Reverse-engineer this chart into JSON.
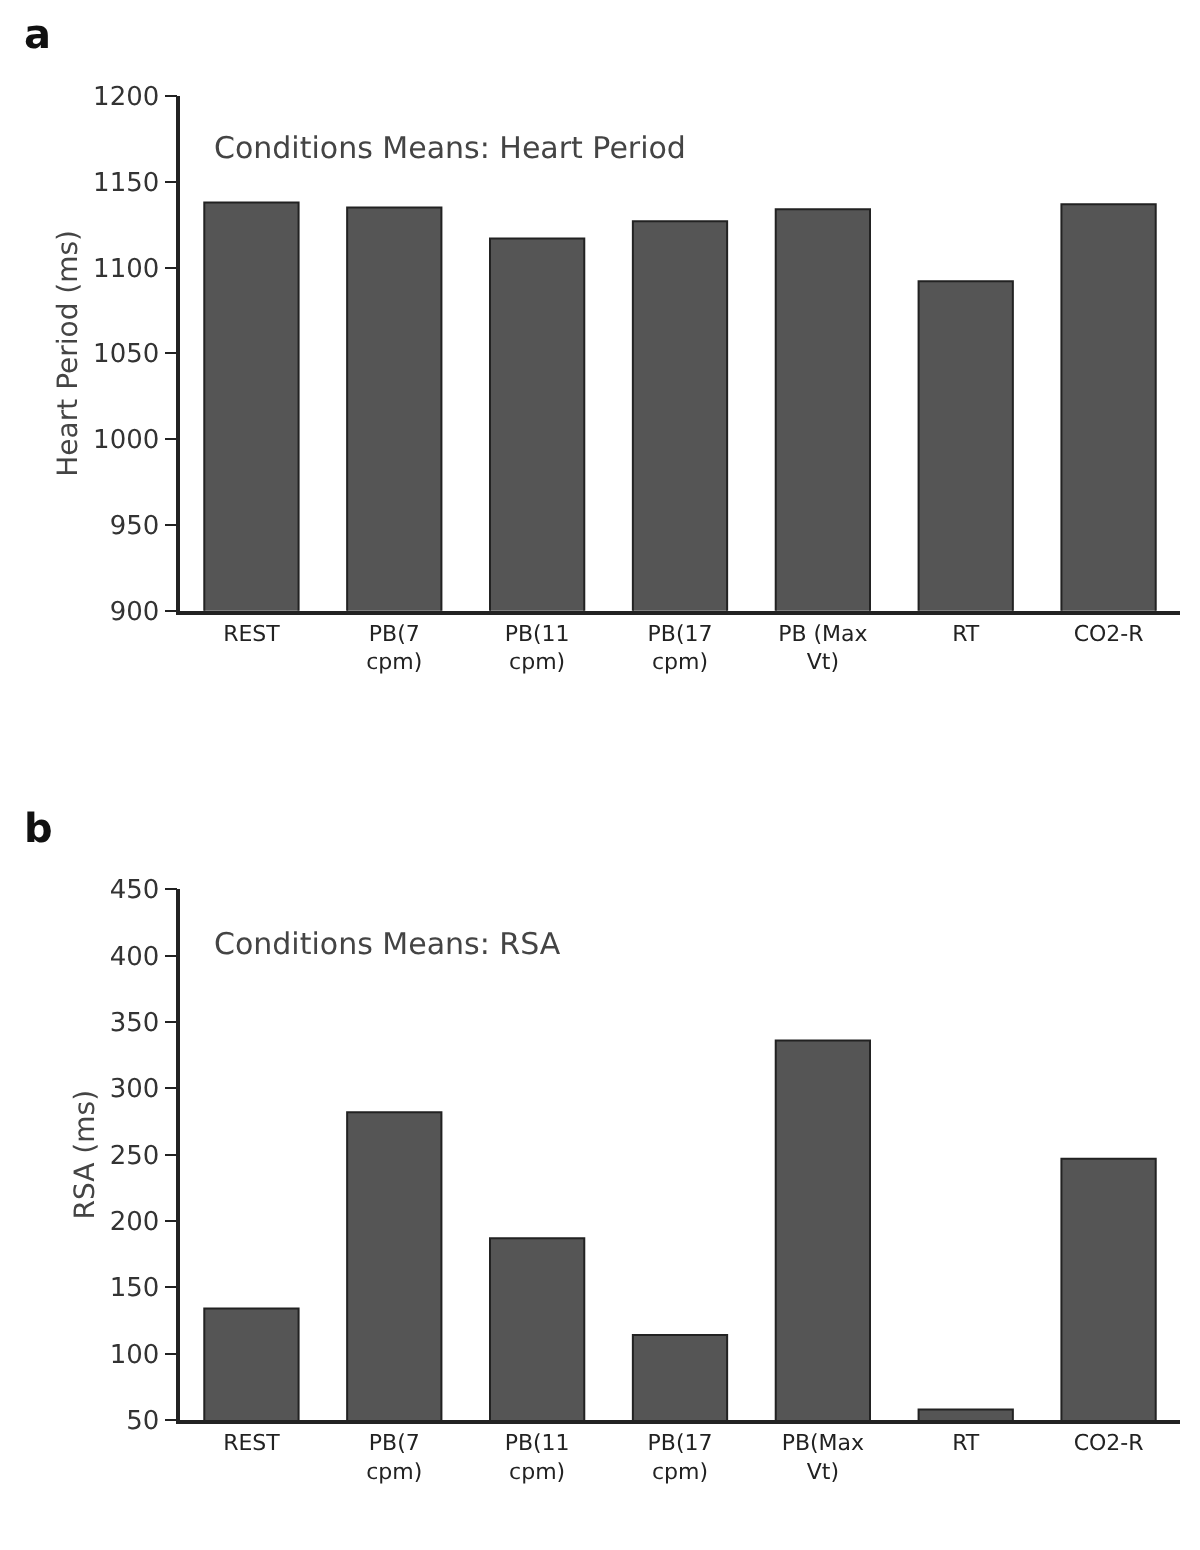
{
  "chart_data": [
    {
      "type": "bar",
      "title": "Conditions Means: Heart Period",
      "ylabel": "Heart Period (ms)",
      "annotations": [
        "a"
      ],
      "categories": [
        "REST",
        "PB(7\ncpm)",
        "PB(11\ncpm)",
        "PB(17\ncpm)",
        "PB (Max\nVt)",
        "RT",
        "CO2-R"
      ],
      "values": [
        1138,
        1135,
        1117,
        1127,
        1134,
        1092,
        1137
      ],
      "color": "#555555",
      "ylim": [
        900,
        1200
      ],
      "yticks": [
        900,
        950,
        1000,
        1050,
        1100,
        1150,
        1200
      ]
    },
    {
      "type": "bar",
      "title": "Conditions Means: RSA",
      "ylabel": "RSA (ms)",
      "annotations": [
        "b"
      ],
      "categories": [
        "REST",
        "PB(7\ncpm)",
        "PB(11\ncpm)",
        "PB(17\ncpm)",
        "PB(Max\nVt)",
        "RT",
        "CO2-R"
      ],
      "values": [
        134,
        282,
        187,
        114,
        336,
        58,
        247
      ],
      "color": "#555555",
      "ylim": [
        50,
        450
      ],
      "yticks": [
        50,
        100,
        150,
        200,
        250,
        300,
        350,
        400,
        450
      ]
    }
  ]
}
